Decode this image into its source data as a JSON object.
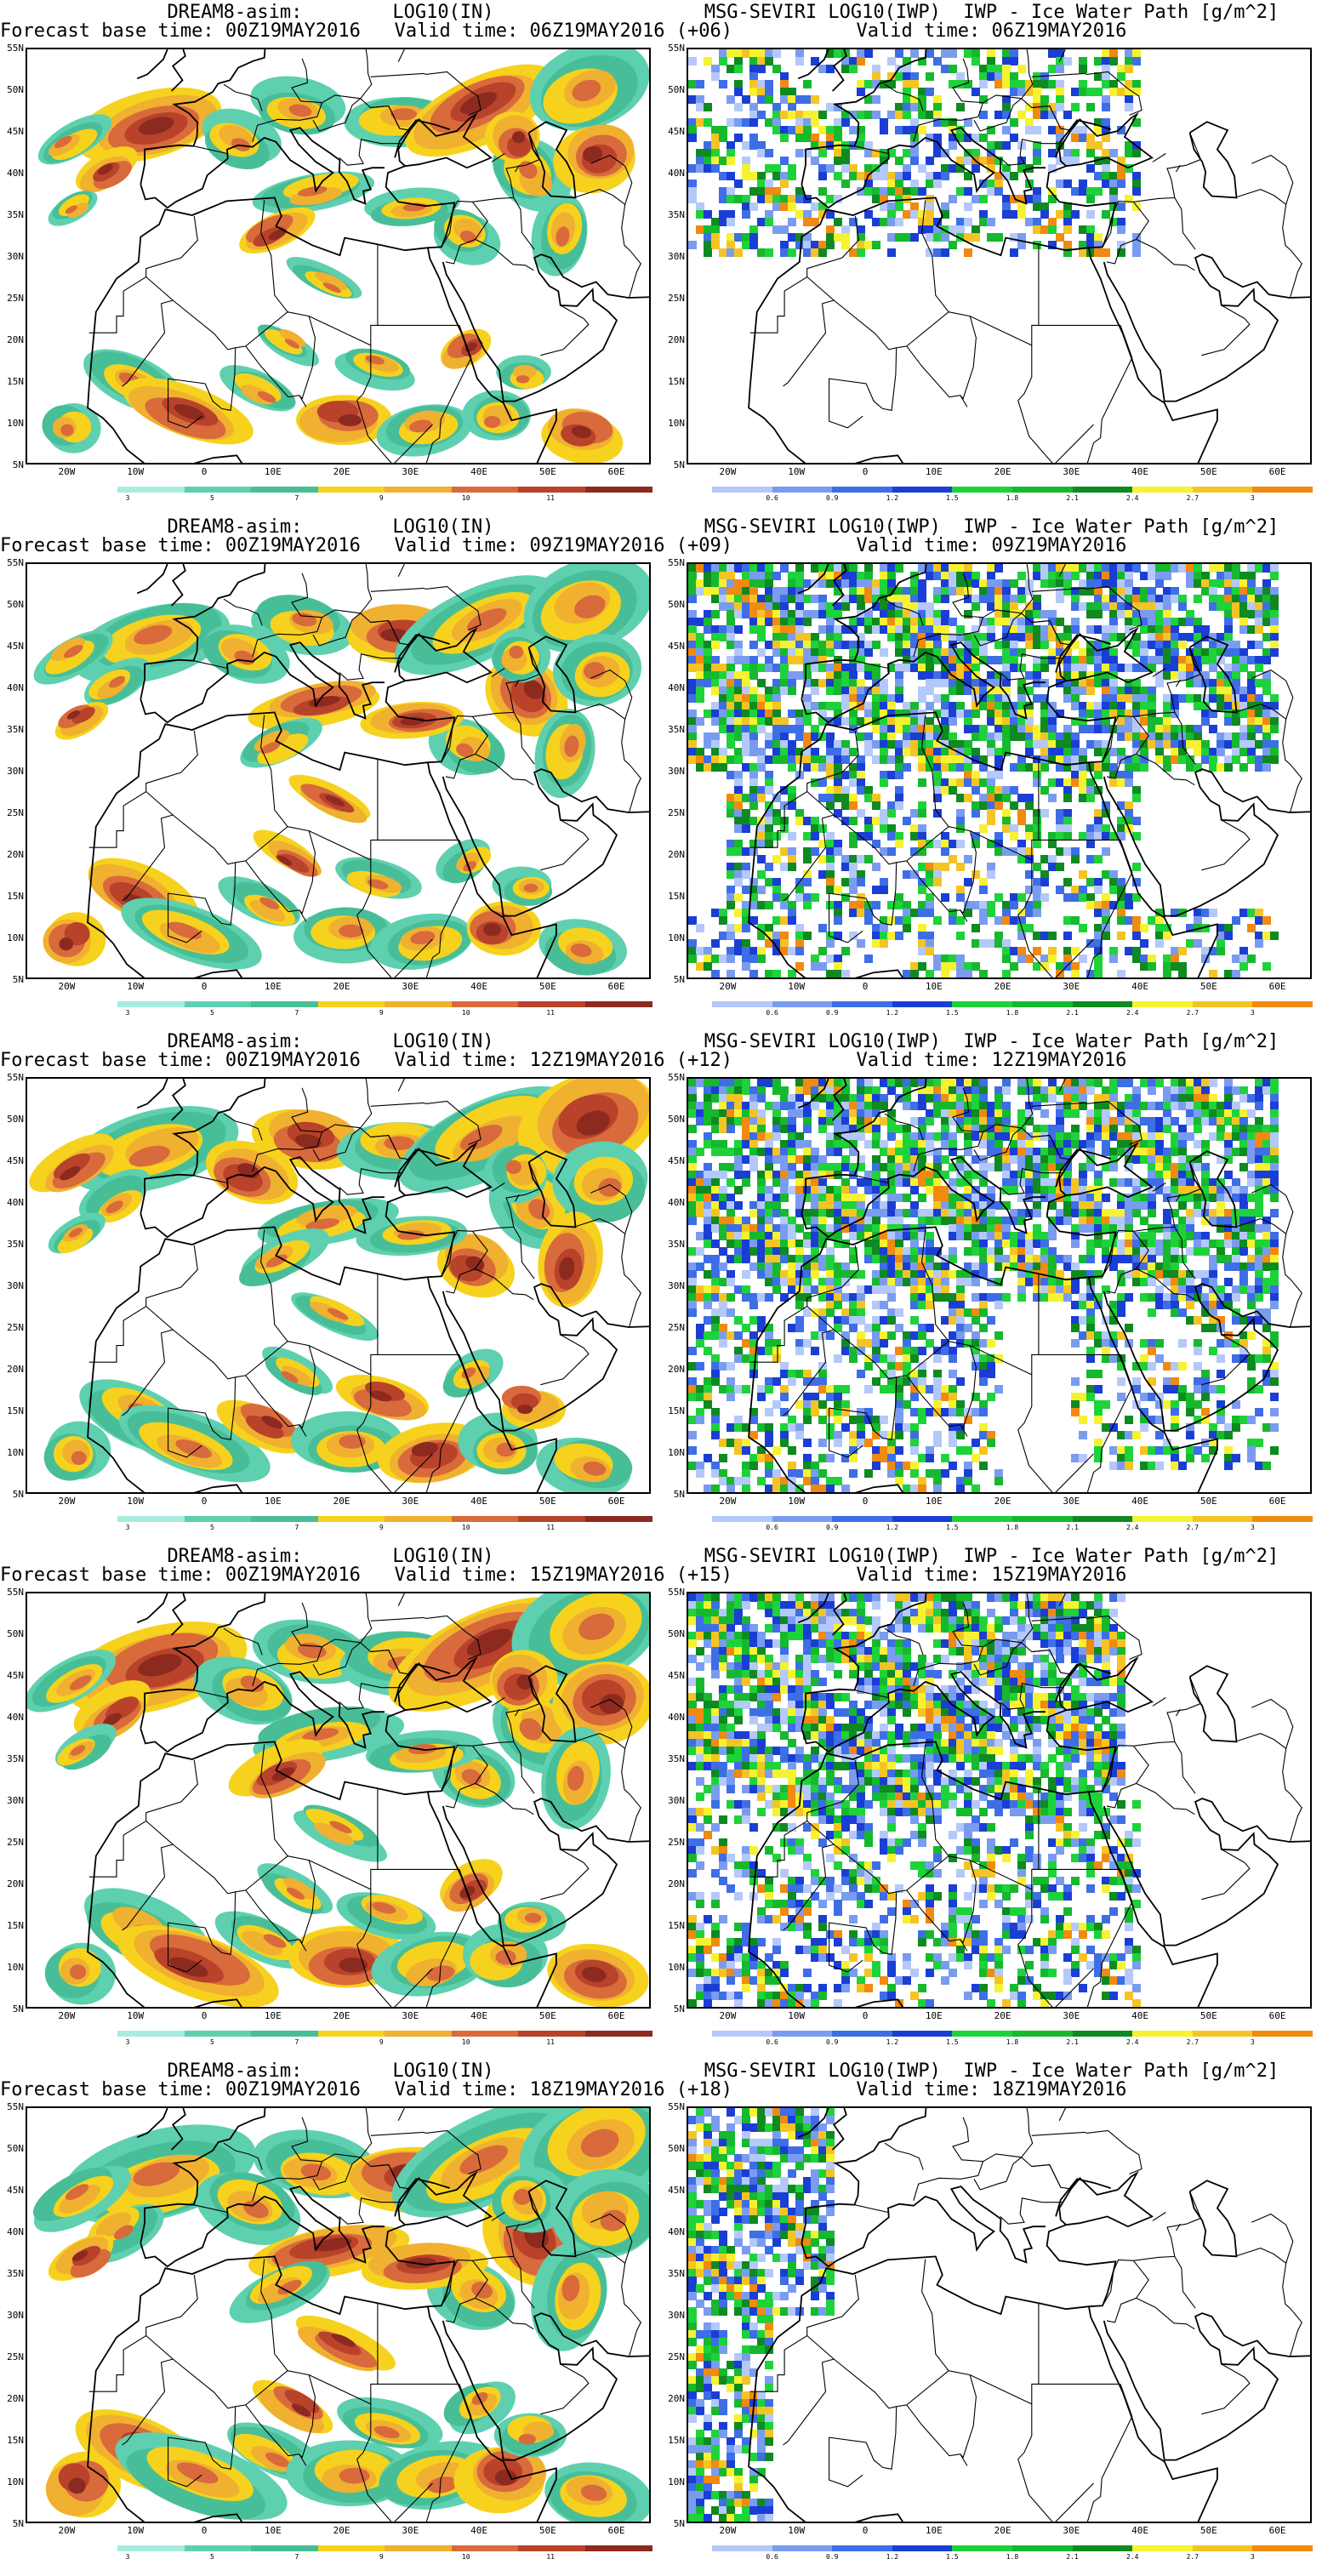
{
  "colors": {
    "model": [
      "#a8ecdf",
      "#5ed0b0",
      "#48be98",
      "#f6d21e",
      "#f0b030",
      "#d86a3c",
      "#b8422a",
      "#8c2a20"
    ],
    "sat": [
      "#b4c8fa",
      "#7a9cf0",
      "#3e6ee6",
      "#1a3ed4",
      "#1ed23a",
      "#16b82e",
      "#0e8a20",
      "#f6f232",
      "#f4c424",
      "#f08a10"
    ],
    "map_line": "#000000"
  },
  "axes": {
    "y_labels": [
      "55N",
      "50N",
      "45N",
      "40N",
      "35N",
      "30N",
      "25N",
      "20N",
      "15N",
      "10N",
      "5N"
    ],
    "x_labels": [
      "20W",
      "10W",
      "0",
      "10E",
      "20E",
      "30E",
      "40E",
      "50E",
      "60E"
    ],
    "lat_range": [
      5,
      55
    ],
    "lon_range": [
      -26,
      65
    ]
  },
  "colorbars": {
    "model_ticks": [
      "3",
      "5",
      "7",
      "9",
      "10",
      "11"
    ],
    "sat_ticks": [
      "0.6",
      "0.9",
      "1.2",
      "1.5",
      "1.8",
      "2.1",
      "2.4",
      "2.7",
      "3"
    ]
  },
  "rows": [
    {
      "model": {
        "title_1": "DREAM8-asim:        LOG10(IN)",
        "title_2": "Forecast base time: 00Z19MAY2016   Valid time: 06Z19MAY2016 (+06)"
      },
      "sat": {
        "title_1": "MSG-SEVIRI LOG10(IWP)  IWP - Ice Water Path [g/m^2]",
        "title_2": "Valid time: 06Z19MAY2016"
      }
    },
    {
      "model": {
        "title_1": "DREAM8-asim:        LOG10(IN)",
        "title_2": "Forecast base time: 00Z19MAY2016   Valid time: 09Z19MAY2016 (+09)"
      },
      "sat": {
        "title_1": "MSG-SEVIRI LOG10(IWP)  IWP - Ice Water Path [g/m^2]",
        "title_2": "Valid time: 09Z19MAY2016"
      }
    },
    {
      "model": {
        "title_1": "DREAM8-asim:        LOG10(IN)",
        "title_2": "Forecast base time: 00Z19MAY2016   Valid time: 12Z19MAY2016 (+12)"
      },
      "sat": {
        "title_1": "MSG-SEVIRI LOG10(IWP)  IWP - Ice Water Path [g/m^2]",
        "title_2": "Valid time: 12Z19MAY2016"
      }
    },
    {
      "model": {
        "title_1": "DREAM8-asim:        LOG10(IN)",
        "title_2": "Forecast base time: 00Z19MAY2016   Valid time: 15Z19MAY2016 (+15)"
      },
      "sat": {
        "title_1": "MSG-SEVIRI LOG10(IWP)  IWP - Ice Water Path [g/m^2]",
        "title_2": "Valid time: 15Z19MAY2016"
      }
    },
    {
      "model": {
        "title_1": "DREAM8-asim:        LOG10(IN)",
        "title_2": "Forecast base time: 00Z19MAY2016   Valid time: 18Z19MAY2016 (+18)"
      },
      "sat": {
        "title_1": "MSG-SEVIRI LOG10(IWP)  IWP - Ice Water Path [g/m^2]",
        "title_2": "Valid time: 18Z19MAY2016"
      }
    }
  ]
}
